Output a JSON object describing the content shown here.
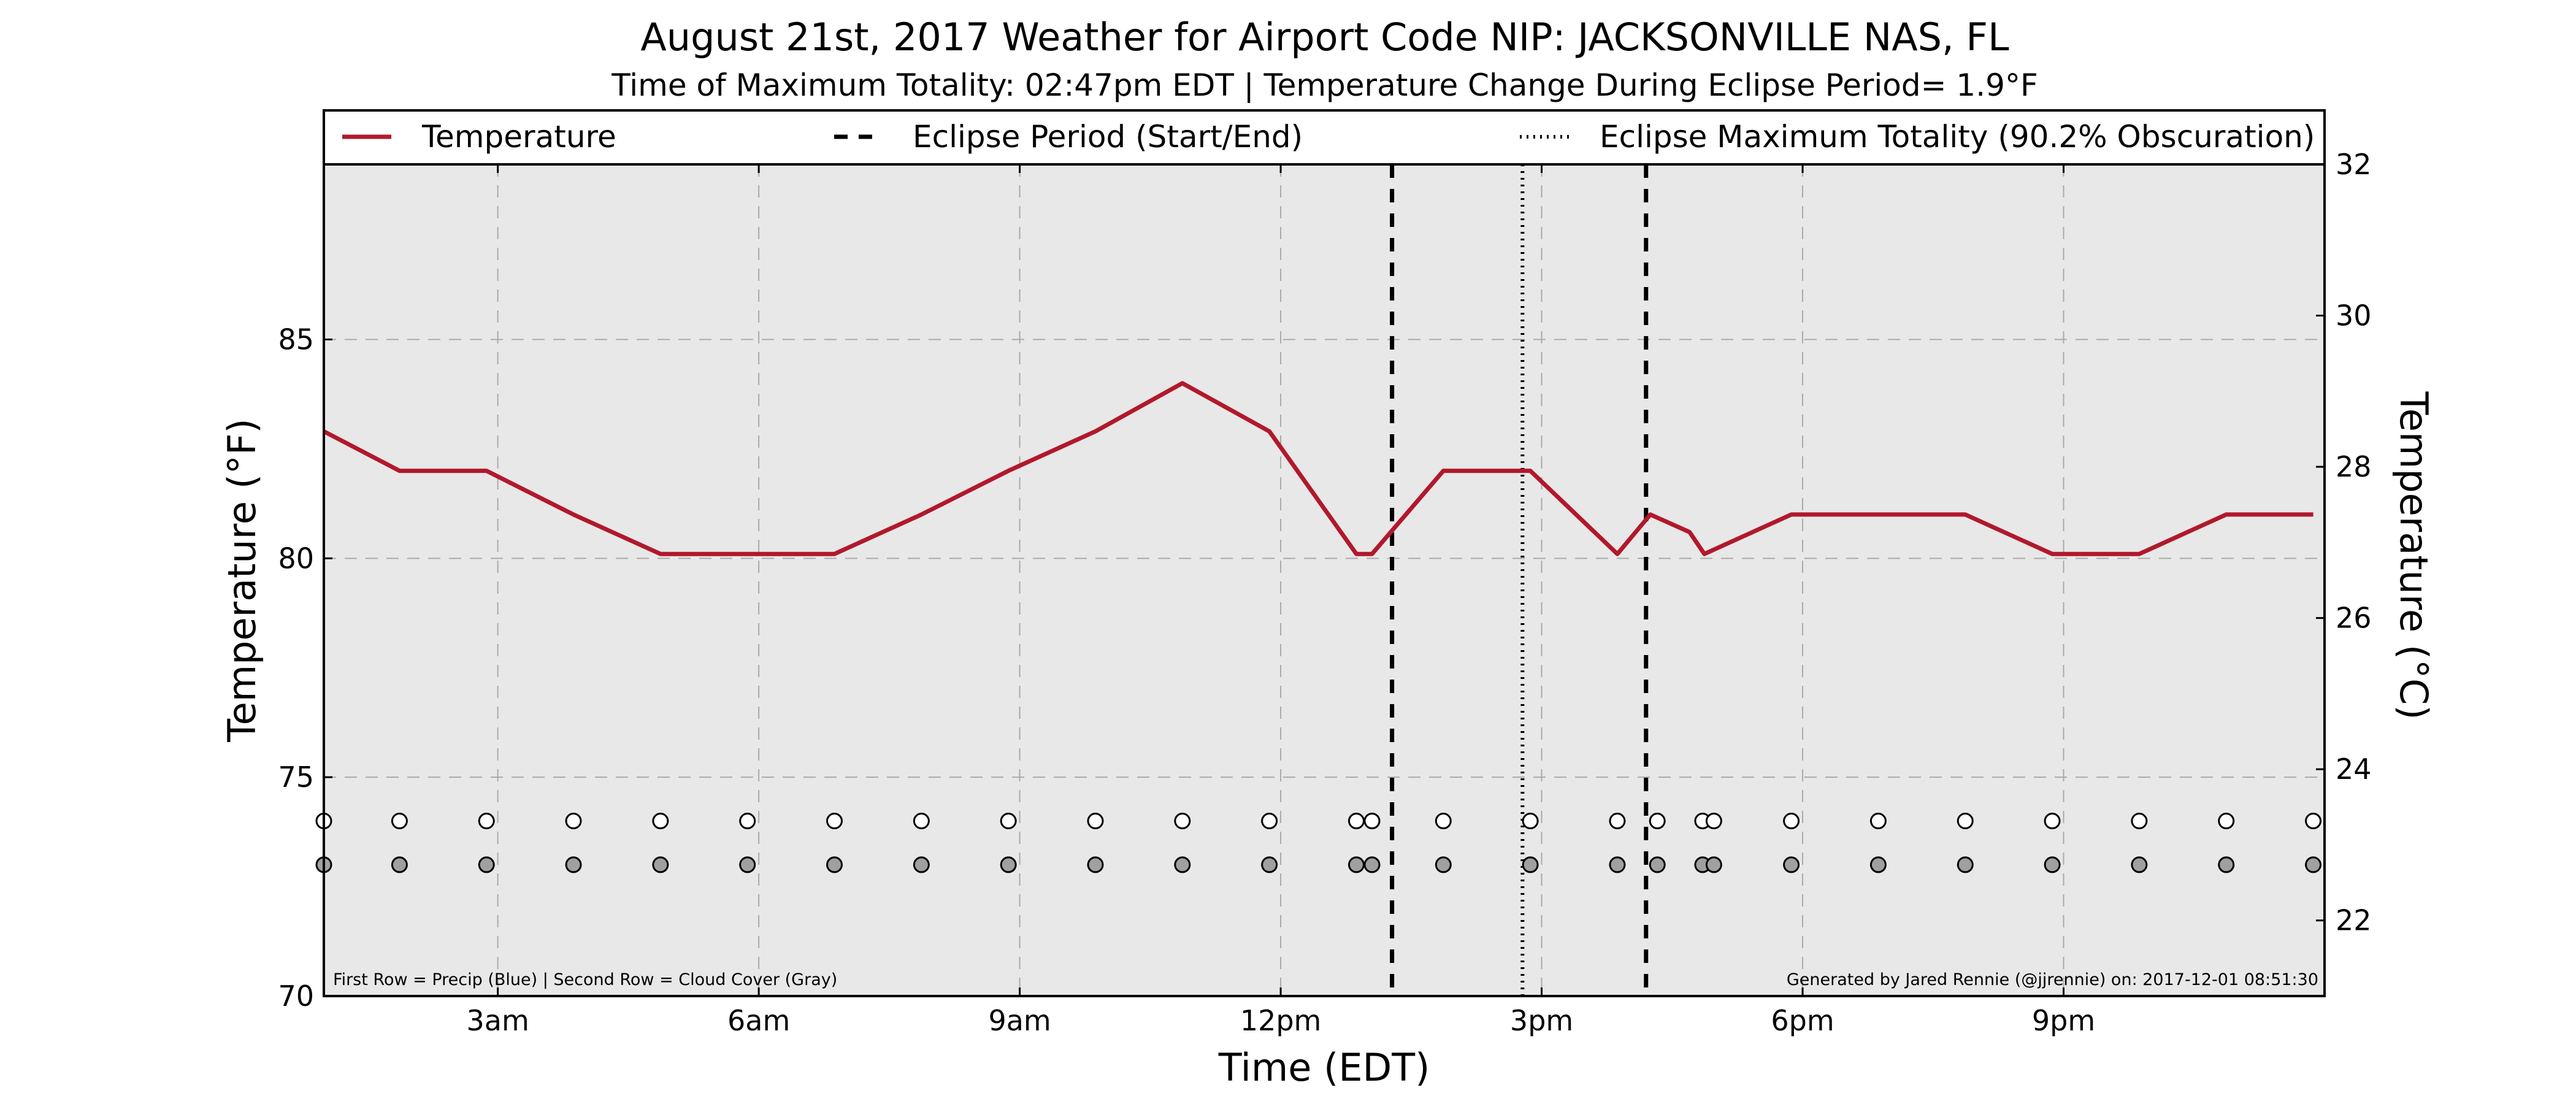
{
  "chart_data": {
    "type": "line",
    "title": "August 21st, 2017 Weather for Airport Code NIP: JACKSONVILLE NAS, FL",
    "subtitle": "Time of Maximum Totality: 02:47pm EDT | Temperature Change During Eclipse Period= 1.9°F",
    "xlabel": "Time (EDT)",
    "ylabel": "Temperature (°F)",
    "ylabel_right": "Temperature (°C)",
    "xlim": [
      1.0,
      24.0
    ],
    "ylim": [
      70,
      89
    ],
    "ylim_right": [
      21.0,
      32.0
    ],
    "x_ticks": [
      {
        "x": 3,
        "label": "3am"
      },
      {
        "x": 6,
        "label": "6am"
      },
      {
        "x": 9,
        "label": "9am"
      },
      {
        "x": 12,
        "label": "12pm"
      },
      {
        "x": 15,
        "label": "3pm"
      },
      {
        "x": 18,
        "label": "6pm"
      },
      {
        "x": 21,
        "label": "9pm"
      }
    ],
    "y_ticks": [
      70,
      75,
      80,
      85
    ],
    "y_ticks_right": [
      22,
      24,
      26,
      28,
      30,
      32
    ],
    "grid": true,
    "legend_position": "top",
    "series": [
      {
        "name": "Temperature",
        "color": "#b2182b",
        "x": [
          1.0,
          1.87,
          2.87,
          3.87,
          4.87,
          5.87,
          6.87,
          7.87,
          8.87,
          9.87,
          10.87,
          11.87,
          12.87,
          13.05,
          13.87,
          14.87,
          15.87,
          16.25,
          16.7,
          16.87,
          17.87,
          18.87,
          19.87,
          20.87,
          21.87,
          22.87,
          23.87
        ],
        "y": [
          82.9,
          82.0,
          82.0,
          81.0,
          80.1,
          80.1,
          80.1,
          81.0,
          82.0,
          82.9,
          84.0,
          82.9,
          80.1,
          80.1,
          82.0,
          82.0,
          80.1,
          81.0,
          80.6,
          80.1,
          81.0,
          81.0,
          81.0,
          80.1,
          80.1,
          81.0,
          81.0
        ]
      }
    ],
    "eclipse_start": 13.28,
    "eclipse_max": 14.78,
    "eclipse_end": 16.2,
    "legend": [
      "Temperature",
      "Eclipse Period (Start/End)",
      "Eclipse Maximum Totality (90.2% Obscuration)"
    ],
    "marker_rows": {
      "x": [
        1.0,
        1.87,
        2.87,
        3.87,
        4.87,
        5.87,
        6.87,
        7.87,
        8.87,
        9.87,
        10.87,
        11.87,
        12.87,
        13.05,
        13.87,
        14.87,
        15.87,
        16.33,
        16.85,
        16.98,
        17.87,
        18.87,
        19.87,
        20.87,
        21.87,
        22.87,
        23.87
      ],
      "precip_row_y": 74.0,
      "cloud_row_y": 73.0,
      "precip_color": "#ffffff",
      "cloud_color": "#a0a0a0"
    },
    "note_left": "First Row = Precip (Blue) | Second Row = Cloud Cover (Gray)",
    "note_right": "Generated by Jared Rennie (@jjrennie) on: 2017-12-01 08:51:30",
    "colors": {
      "plot_background": "#e8e8e8",
      "grid": "#aaaaaa",
      "temperature": "#b2182b"
    }
  }
}
